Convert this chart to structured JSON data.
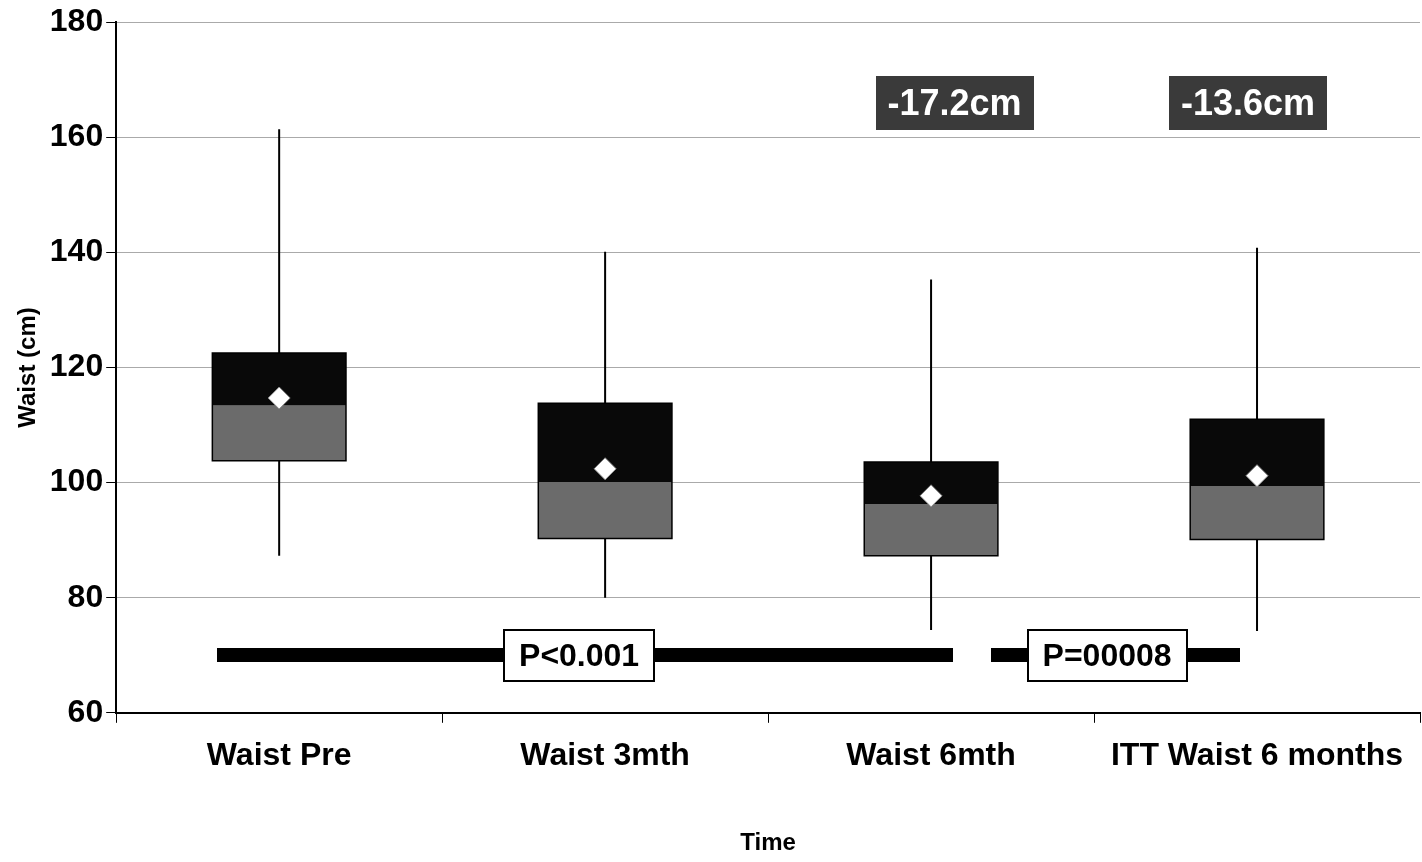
{
  "chart_data": {
    "type": "box",
    "xlabel": "Time",
    "ylabel": "Waist (cm)",
    "categories": [
      "Waist Pre",
      "Waist 3mth",
      "Waist 6mth",
      "ITT Waist 6 months"
    ],
    "series": [
      {
        "color": "#6b6b6b",
        "boxes": [
          {
            "low": 87.3,
            "q1": 103.8,
            "median": 113.4,
            "q3": 122.5,
            "high": 161.4,
            "mean": 114.7
          },
          {
            "low": 80,
            "q1": 90.3,
            "median": 100.1,
            "q3": 113.8,
            "high": 140.1,
            "mean": 102.4
          },
          {
            "low": 74.4,
            "q1": 87.3,
            "median": 96.3,
            "q3": 103.6,
            "high": 135.3,
            "mean": 97.7
          },
          {
            "low": 74.2,
            "q1": 90.1,
            "median": 99.4,
            "q3": 111,
            "high": 140.8,
            "mean": 101.2
          }
        ]
      }
    ],
    "ylim": [
      60,
      180
    ],
    "yticks": [
      60,
      80,
      100,
      120,
      140,
      160,
      180
    ],
    "grid": "y",
    "annotations": [
      "-17.2cm",
      "-13.6cm",
      "P<0.001",
      "P=00008"
    ]
  }
}
